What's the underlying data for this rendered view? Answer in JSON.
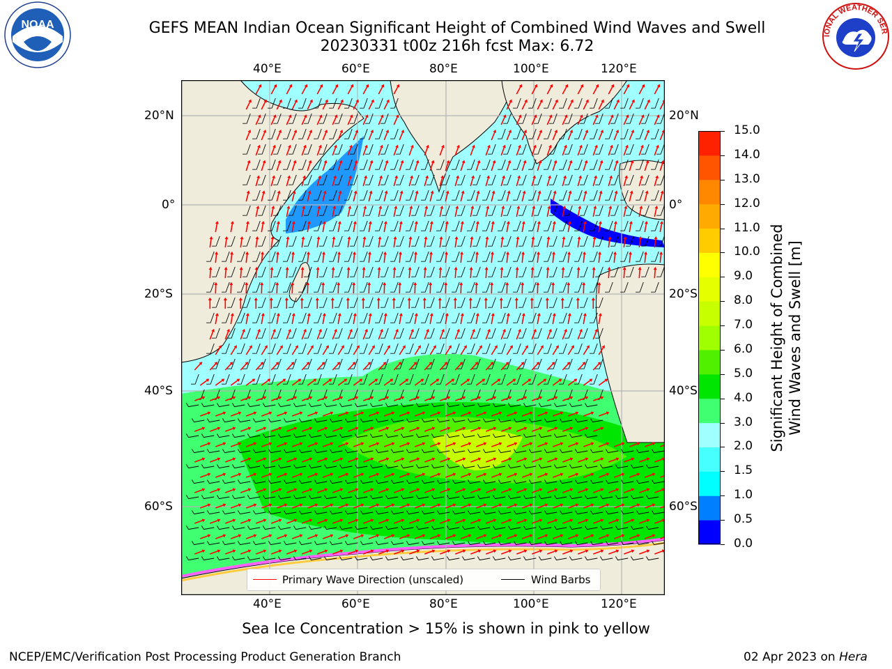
{
  "header": {
    "title_line1": "GEFS MEAN Indian Ocean Significant Height of Combined Wind Waves and Swell",
    "title_line2": "20230331 t00z 216h fcst   Max: 6.72"
  },
  "logos": {
    "noaa_text": "NOAA",
    "nws_text": "NATIONAL WEATHER SERVICE"
  },
  "map": {
    "lon_labels": [
      "40°E",
      "60°E",
      "80°E",
      "100°E",
      "120°E"
    ],
    "lat_labels": [
      "20°N",
      "0°",
      "20°S",
      "40°S",
      "60°S"
    ],
    "lon_range": [
      20,
      130
    ],
    "lat_range": [
      -72,
      27
    ],
    "gridlines": true,
    "colors": {
      "land": "#efecdc",
      "coast": "#000000",
      "grid": "#b4b4b4",
      "arrow": "#ff0000",
      "barb": "#000000"
    }
  },
  "colorbar": {
    "label": "Significant Height of Combined Wind Waves and Swell [m]",
    "label_line1": "Significant Height of Combined",
    "label_line2": "Wind Waves and Swell [m]",
    "ticks": [
      "0.0",
      "0.5",
      "1.0",
      "1.5",
      "2.0",
      "3.0",
      "4.0",
      "5.0",
      "6.0",
      "7.0",
      "8.0",
      "9.0",
      "10.0",
      "11.0",
      "12.0",
      "13.0",
      "14.0",
      "15.0"
    ],
    "colors": [
      "#0000ff",
      "#0080ff",
      "#00ffff",
      "#48ffff",
      "#a0ffff",
      "#40ff70",
      "#00e600",
      "#50f000",
      "#a0ff00",
      "#c8ff00",
      "#e6ff00",
      "#ffff00",
      "#ffcc00",
      "#ffaa00",
      "#ff8800",
      "#ff5500",
      "#ff2200"
    ]
  },
  "legend": {
    "items": [
      {
        "label": "Primary Wave Direction (unscaled)",
        "color": "#ff0000"
      },
      {
        "label": "Wind Barbs",
        "color": "#000000"
      }
    ]
  },
  "footer": {
    "sea_ice_note": "Sea Ice Concentration > 15% is shown in pink to yellow",
    "branch": "NCEP/EMC/Verification Post Processing Product Generation Branch",
    "date": "02 Apr 2023 on",
    "machine": "Hera"
  }
}
